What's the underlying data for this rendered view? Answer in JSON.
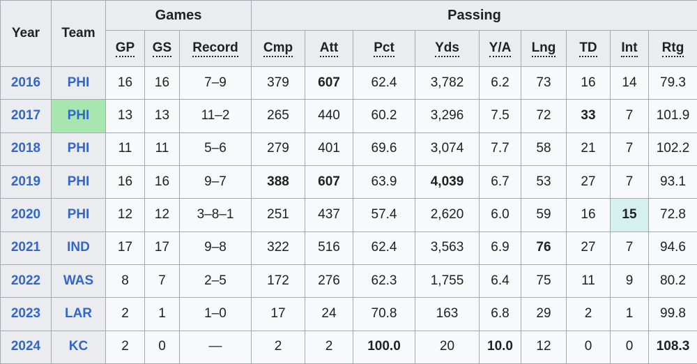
{
  "header": {
    "year": "Year",
    "team": "Team",
    "games_label": "Games",
    "passing_label": "Passing",
    "cols": [
      "GP",
      "GS",
      "Record",
      "Cmp",
      "Att",
      "Pct",
      "Yds",
      "Y/A",
      "Lng",
      "TD",
      "Int",
      "Rtg"
    ]
  },
  "colors": {
    "header_bg": "#eaecf0",
    "cell_bg": "#f8f9fa",
    "border": "#a2a9b1",
    "link_blue": "#3366cc",
    "superbowl_highlight_green": "#a8e6af",
    "league_lead_highlight_teal": "#d5f0ee"
  },
  "rows": [
    {
      "year": "2016",
      "team": "PHI",
      "cells": [
        {
          "v": "16"
        },
        {
          "v": "16"
        },
        {
          "v": "7–9"
        },
        {
          "v": "379"
        },
        {
          "v": "607",
          "bold": true
        },
        {
          "v": "62.4"
        },
        {
          "v": "3,782"
        },
        {
          "v": "6.2"
        },
        {
          "v": "73"
        },
        {
          "v": "16"
        },
        {
          "v": "14"
        },
        {
          "v": "79.3"
        }
      ]
    },
    {
      "year": "2017",
      "team": "PHI",
      "team_bg": "#a8e6af",
      "cells": [
        {
          "v": "13"
        },
        {
          "v": "13"
        },
        {
          "v": "11–2"
        },
        {
          "v": "265"
        },
        {
          "v": "440"
        },
        {
          "v": "60.2"
        },
        {
          "v": "3,296"
        },
        {
          "v": "7.5"
        },
        {
          "v": "72"
        },
        {
          "v": "33",
          "bold": true
        },
        {
          "v": "7"
        },
        {
          "v": "101.9"
        }
      ]
    },
    {
      "year": "2018",
      "team": "PHI",
      "cells": [
        {
          "v": "11"
        },
        {
          "v": "11"
        },
        {
          "v": "5–6"
        },
        {
          "v": "279"
        },
        {
          "v": "401"
        },
        {
          "v": "69.6"
        },
        {
          "v": "3,074"
        },
        {
          "v": "7.7"
        },
        {
          "v": "58"
        },
        {
          "v": "21"
        },
        {
          "v": "7"
        },
        {
          "v": "102.2"
        }
      ]
    },
    {
      "year": "2019",
      "team": "PHI",
      "cells": [
        {
          "v": "16"
        },
        {
          "v": "16"
        },
        {
          "v": "9–7"
        },
        {
          "v": "388",
          "bold": true
        },
        {
          "v": "607",
          "bold": true
        },
        {
          "v": "63.9"
        },
        {
          "v": "4,039",
          "bold": true
        },
        {
          "v": "6.7"
        },
        {
          "v": "53"
        },
        {
          "v": "27"
        },
        {
          "v": "7"
        },
        {
          "v": "93.1"
        }
      ]
    },
    {
      "year": "2020",
      "team": "PHI",
      "cells": [
        {
          "v": "12"
        },
        {
          "v": "12"
        },
        {
          "v": "3–8–1"
        },
        {
          "v": "251"
        },
        {
          "v": "437"
        },
        {
          "v": "57.4"
        },
        {
          "v": "2,620"
        },
        {
          "v": "6.0"
        },
        {
          "v": "59"
        },
        {
          "v": "16"
        },
        {
          "v": "15",
          "bold": true,
          "bg": "#d5f0ee"
        },
        {
          "v": "72.8"
        }
      ]
    },
    {
      "year": "2021",
      "team": "IND",
      "cells": [
        {
          "v": "17"
        },
        {
          "v": "17"
        },
        {
          "v": "9–8"
        },
        {
          "v": "322"
        },
        {
          "v": "516"
        },
        {
          "v": "62.4"
        },
        {
          "v": "3,563"
        },
        {
          "v": "6.9"
        },
        {
          "v": "76",
          "bold": true
        },
        {
          "v": "27"
        },
        {
          "v": "7"
        },
        {
          "v": "94.6"
        }
      ]
    },
    {
      "year": "2022",
      "team": "WAS",
      "cells": [
        {
          "v": "8"
        },
        {
          "v": "7"
        },
        {
          "v": "2–5"
        },
        {
          "v": "172"
        },
        {
          "v": "276"
        },
        {
          "v": "62.3"
        },
        {
          "v": "1,755"
        },
        {
          "v": "6.4"
        },
        {
          "v": "75"
        },
        {
          "v": "11"
        },
        {
          "v": "9"
        },
        {
          "v": "80.2"
        }
      ]
    },
    {
      "year": "2023",
      "team": "LAR",
      "cells": [
        {
          "v": "2"
        },
        {
          "v": "1"
        },
        {
          "v": "1–0"
        },
        {
          "v": "17"
        },
        {
          "v": "24"
        },
        {
          "v": "70.8"
        },
        {
          "v": "163"
        },
        {
          "v": "6.8"
        },
        {
          "v": "29"
        },
        {
          "v": "2"
        },
        {
          "v": "1"
        },
        {
          "v": "99.8"
        }
      ]
    },
    {
      "year": "2024",
      "team": "KC",
      "cells": [
        {
          "v": "2"
        },
        {
          "v": "0"
        },
        {
          "v": "—"
        },
        {
          "v": "2"
        },
        {
          "v": "2"
        },
        {
          "v": "100.0",
          "bold": true
        },
        {
          "v": "20"
        },
        {
          "v": "10.0",
          "bold": true
        },
        {
          "v": "12"
        },
        {
          "v": "0"
        },
        {
          "v": "0"
        },
        {
          "v": "108.3",
          "bold": true
        }
      ]
    }
  ]
}
